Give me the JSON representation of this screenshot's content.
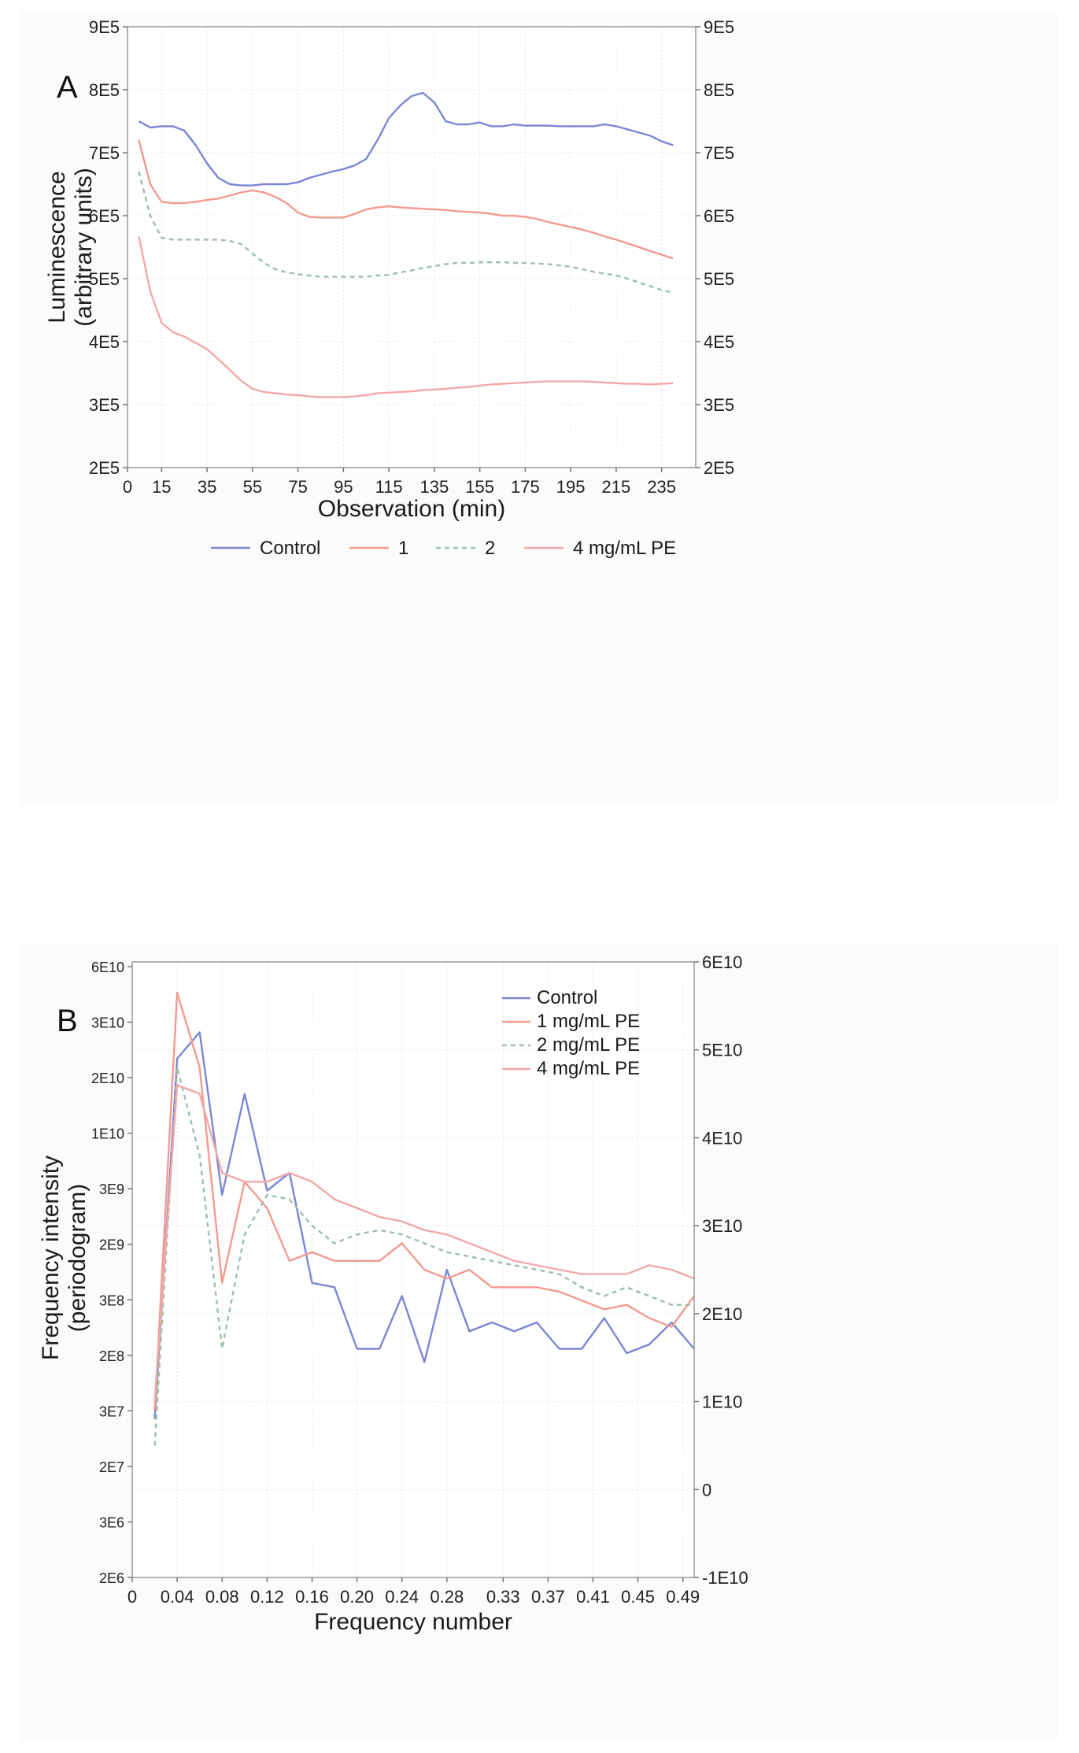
{
  "chart_data": [
    {
      "panel": "A",
      "type": "line",
      "xlabel": "Observation (min)",
      "ylabel_lines": [
        "Luminescence",
        "(arbitrary units)"
      ],
      "xlim": [
        0,
        250
      ],
      "ylim": [
        200000,
        900000
      ],
      "xticks": [
        0,
        15,
        35,
        55,
        75,
        95,
        115,
        135,
        155,
        175,
        195,
        215,
        235
      ],
      "xticklabels": [
        "0",
        "15",
        "35",
        "55",
        "75",
        "95",
        "115",
        "135",
        "155",
        "175",
        "195",
        "215",
        "235"
      ],
      "yticks": [
        200000,
        300000,
        400000,
        500000,
        600000,
        700000,
        800000,
        900000
      ],
      "yticklabels": [
        "2E5",
        "3E5",
        "4E5",
        "5E5",
        "6E5",
        "7E5",
        "8E5",
        "9E5"
      ],
      "legend_position": "bottom",
      "grid": true,
      "series": [
        {
          "name": "Control",
          "color": "#7b86d4",
          "dash": "",
          "x": [
            5,
            10,
            15,
            20,
            25,
            30,
            35,
            40,
            45,
            50,
            55,
            60,
            65,
            70,
            75,
            80,
            85,
            90,
            95,
            100,
            105,
            110,
            115,
            120,
            125,
            130,
            135,
            140,
            145,
            150,
            155,
            160,
            165,
            170,
            175,
            180,
            185,
            190,
            195,
            200,
            205,
            210,
            215,
            220,
            225,
            230,
            235,
            240
          ],
          "y": [
            750000,
            740000,
            742000,
            742000,
            735000,
            712000,
            683000,
            660000,
            650000,
            648000,
            648000,
            650000,
            650000,
            650000,
            653000,
            660000,
            665000,
            670000,
            674000,
            680000,
            690000,
            720000,
            755000,
            775000,
            790000,
            795000,
            780000,
            750000,
            745000,
            745000,
            748000,
            742000,
            742000,
            745000,
            743000,
            743000,
            743000,
            742000,
            742000,
            742000,
            742000,
            745000,
            742000,
            737000,
            732000,
            727000,
            718000,
            712000
          ]
        },
        {
          "name": "1",
          "color": "#f29a90",
          "dash": "",
          "x": [
            5,
            10,
            15,
            20,
            25,
            30,
            35,
            40,
            45,
            50,
            55,
            60,
            65,
            70,
            75,
            80,
            85,
            90,
            95,
            100,
            105,
            110,
            115,
            120,
            125,
            130,
            135,
            140,
            145,
            150,
            155,
            160,
            165,
            170,
            175,
            180,
            185,
            190,
            195,
            200,
            205,
            210,
            215,
            220,
            225,
            230,
            235,
            240
          ],
          "y": [
            720000,
            650000,
            622000,
            620000,
            620000,
            622000,
            625000,
            627000,
            632000,
            637000,
            640000,
            637000,
            630000,
            620000,
            605000,
            598000,
            597000,
            597000,
            597000,
            603000,
            610000,
            613000,
            615000,
            613000,
            612000,
            611000,
            610000,
            609000,
            607000,
            606000,
            605000,
            603000,
            600000,
            600000,
            598000,
            595000,
            590000,
            586000,
            582000,
            578000,
            573000,
            567000,
            562000,
            556000,
            550000,
            544000,
            538000,
            532000
          ]
        },
        {
          "name": "2",
          "color": "#9fbfa6",
          "dash": "6,5",
          "x": [
            5,
            10,
            15,
            20,
            25,
            30,
            35,
            40,
            45,
            50,
            55,
            60,
            65,
            70,
            75,
            80,
            85,
            90,
            95,
            100,
            105,
            110,
            115,
            120,
            125,
            130,
            135,
            140,
            145,
            150,
            155,
            160,
            165,
            170,
            175,
            180,
            185,
            190,
            195,
            200,
            205,
            210,
            215,
            220,
            225,
            230,
            235,
            240
          ],
          "y": [
            670000,
            600000,
            565000,
            562000,
            562000,
            562000,
            562000,
            562000,
            560000,
            555000,
            540000,
            525000,
            515000,
            510000,
            507000,
            505000,
            503000,
            503000,
            503000,
            503000,
            503000,
            505000,
            506000,
            510000,
            513000,
            517000,
            520000,
            523000,
            525000,
            525000,
            526000,
            526000,
            526000,
            525000,
            525000,
            524000,
            523000,
            521000,
            519000,
            515000,
            511000,
            508000,
            505000,
            500000,
            494000,
            488000,
            482000,
            478000
          ]
        },
        {
          "name": "4 mg/mL PE",
          "color": "#f2a8a8",
          "dash": "",
          "x": [
            5,
            10,
            15,
            20,
            25,
            30,
            35,
            40,
            45,
            50,
            55,
            60,
            65,
            70,
            75,
            80,
            85,
            90,
            95,
            100,
            105,
            110,
            115,
            120,
            125,
            130,
            135,
            140,
            145,
            150,
            155,
            160,
            165,
            170,
            175,
            180,
            185,
            190,
            195,
            200,
            205,
            210,
            215,
            220,
            225,
            230,
            235,
            240
          ],
          "y": [
            567000,
            480000,
            430000,
            415000,
            408000,
            398000,
            388000,
            372000,
            355000,
            338000,
            325000,
            320000,
            318000,
            316000,
            315000,
            313000,
            312000,
            312000,
            312000,
            313000,
            315000,
            318000,
            319000,
            320000,
            321000,
            323000,
            324000,
            325000,
            327000,
            328000,
            330000,
            332000,
            333000,
            334000,
            335000,
            336000,
            337000,
            337000,
            337000,
            337000,
            336000,
            335000,
            334000,
            333000,
            333000,
            332000,
            333000,
            334000
          ]
        }
      ]
    },
    {
      "panel": "B",
      "type": "line",
      "xlabel": "Frequency number",
      "ylabel_lines": [
        "Frequency intensity",
        "(periodogram)"
      ],
      "xlim": [
        0,
        0.5
      ],
      "ylim": [
        -10000000000,
        60000000000
      ],
      "xticks": [
        0,
        0.04,
        0.08,
        0.12,
        0.16,
        0.2,
        0.24,
        0.28,
        0.33,
        0.37,
        0.41,
        0.45,
        0.49
      ],
      "xticklabels": [
        "0",
        "0.04",
        "0.08",
        "0.12",
        "0.16",
        "0.20",
        "0.24",
        "0.28",
        "0.33",
        "0.37",
        "0.41",
        "0.45",
        "0.49"
      ],
      "yticks_right": [
        -10000000000,
        0,
        10000000000,
        20000000000,
        30000000000,
        40000000000,
        50000000000,
        60000000000
      ],
      "yticklabels_right": [
        "-1E10",
        "0",
        "1E10",
        "2E10",
        "3E10",
        "4E10",
        "5E10",
        "6E10"
      ],
      "yticklabels_left": [
        "2E6",
        "3E6",
        "2E7",
        "3E7",
        "2E8",
        "3E8",
        "2E9",
        "3E9",
        "1E10",
        "2E10",
        "3E10",
        "6E10"
      ],
      "legend_position": "top-right",
      "grid": true,
      "series": [
        {
          "name": "Control",
          "color": "#7b86d4",
          "dash": "",
          "x": [
            0.02,
            0.04,
            0.06,
            0.08,
            0.1,
            0.12,
            0.14,
            0.16,
            0.18,
            0.2,
            0.22,
            0.24,
            0.26,
            0.28,
            0.3,
            0.32,
            0.34,
            0.36,
            0.38,
            0.4,
            0.42,
            0.44,
            0.46,
            0.48,
            0.5
          ],
          "y": [
            8000000000,
            49000000000,
            52000000000,
            33500000000,
            45000000000,
            34000000000,
            36000000000,
            23500000000,
            23000000000,
            16000000000,
            16000000000,
            22000000000,
            14500000000,
            25000000000,
            18000000000,
            19000000000,
            18000000000,
            19000000000,
            16000000000,
            16000000000,
            19500000000,
            15500000000,
            16500000000,
            19000000000,
            16000000000
          ]
        },
        {
          "name": "1 mg/mL PE",
          "color": "#f29a90",
          "dash": "",
          "x": [
            0.02,
            0.04,
            0.06,
            0.08,
            0.1,
            0.12,
            0.14,
            0.16,
            0.18,
            0.2,
            0.22,
            0.24,
            0.26,
            0.28,
            0.3,
            0.32,
            0.34,
            0.36,
            0.38,
            0.4,
            0.42,
            0.44,
            0.46,
            0.48,
            0.5
          ],
          "y": [
            9000000000,
            56500000000,
            48000000000,
            23500000000,
            35000000000,
            32000000000,
            26000000000,
            27000000000,
            26000000000,
            26000000000,
            26000000000,
            28000000000,
            25000000000,
            24000000000,
            25000000000,
            23000000000,
            23000000000,
            23000000000,
            22500000000,
            21500000000,
            20500000000,
            21000000000,
            19500000000,
            18500000000,
            22000000000
          ]
        },
        {
          "name": "2 mg/mL PE",
          "color": "#9fbfa6",
          "dash": "6,5",
          "x": [
            0.02,
            0.04,
            0.06,
            0.08,
            0.1,
            0.12,
            0.14,
            0.16,
            0.18,
            0.2,
            0.22,
            0.24,
            0.26,
            0.28,
            0.3,
            0.32,
            0.34,
            0.36,
            0.38,
            0.4,
            0.42,
            0.44,
            0.46,
            0.48,
            0.5
          ],
          "y": [
            5000000000,
            48000000000,
            38000000000,
            16000000000,
            29000000000,
            33500000000,
            33000000000,
            30000000000,
            28000000000,
            29000000000,
            29500000000,
            29000000000,
            28000000000,
            27000000000,
            26500000000,
            26000000000,
            25500000000,
            25000000000,
            24500000000,
            23000000000,
            22000000000,
            23000000000,
            22000000000,
            21000000000,
            21000000000
          ]
        },
        {
          "name": "4 mg/mL PE",
          "color": "#f2a8a8",
          "dash": "",
          "x": [
            0.02,
            0.04,
            0.06,
            0.08,
            0.1,
            0.12,
            0.14,
            0.16,
            0.18,
            0.2,
            0.22,
            0.24,
            0.26,
            0.28,
            0.3,
            0.32,
            0.34,
            0.36,
            0.38,
            0.4,
            0.42,
            0.44,
            0.46,
            0.48,
            0.5
          ],
          "y": [
            10000000000,
            46000000000,
            45000000000,
            36000000000,
            35000000000,
            35000000000,
            36000000000,
            35000000000,
            33000000000,
            32000000000,
            31000000000,
            30500000000,
            29500000000,
            29000000000,
            28000000000,
            27000000000,
            26000000000,
            25500000000,
            25000000000,
            24500000000,
            24500000000,
            24500000000,
            25500000000,
            25000000000,
            24000000000
          ]
        }
      ]
    }
  ],
  "panels": {
    "A": {
      "letter": "A"
    },
    "B": {
      "letter": "B"
    }
  }
}
